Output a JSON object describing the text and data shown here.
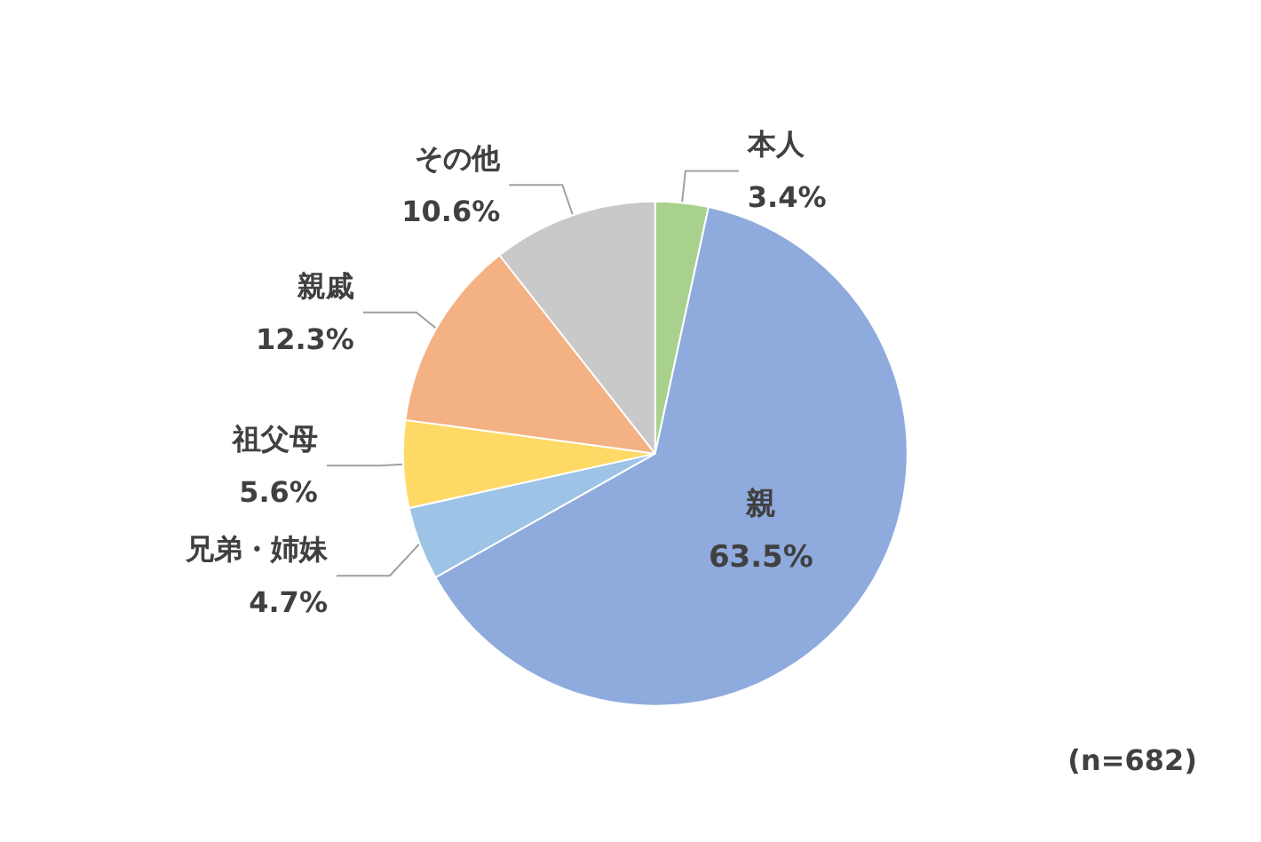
{
  "chart_data": {
    "type": "pie",
    "categories": [
      "本人",
      "親",
      "兄弟・姉妹",
      "祖父母",
      "親戚",
      "その他"
    ],
    "values": [
      3.4,
      63.5,
      4.7,
      5.6,
      12.3,
      10.6
    ],
    "colors": [
      "#a9d18e",
      "#8faadc",
      "#9dc3e6",
      "#ffd966",
      "#f4b183",
      "#c9c9c9"
    ],
    "value_labels": [
      "3.4%",
      "63.5%",
      "4.7%",
      "5.6%",
      "12.3%",
      "10.6%"
    ],
    "legend": false,
    "annotations": [
      "(n=682)"
    ]
  }
}
